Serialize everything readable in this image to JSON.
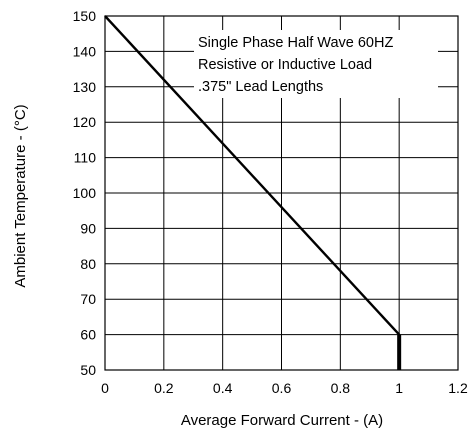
{
  "chart_data": {
    "type": "line",
    "title": "",
    "xlabel": "Average Forward Current - (A)",
    "ylabel": "Ambient Temperature - (°C)",
    "xlim": [
      0,
      1.2
    ],
    "ylim": [
      50,
      150
    ],
    "x_ticks": [
      "0",
      "0.2",
      "0.4",
      "0.6",
      "0.8",
      "1",
      "1.2"
    ],
    "y_ticks": [
      "50",
      "60",
      "70",
      "80",
      "90",
      "100",
      "110",
      "120",
      "130",
      "140",
      "150"
    ],
    "grid": true,
    "annotation": [
      "Single Phase Half Wave 60HZ",
      "Resistive or Inductive Load",
      ".375\" Lead Lengths"
    ],
    "series": [
      {
        "x": [
          0,
          1.0,
          1.0
        ],
        "y": [
          150,
          60,
          50
        ]
      }
    ]
  }
}
